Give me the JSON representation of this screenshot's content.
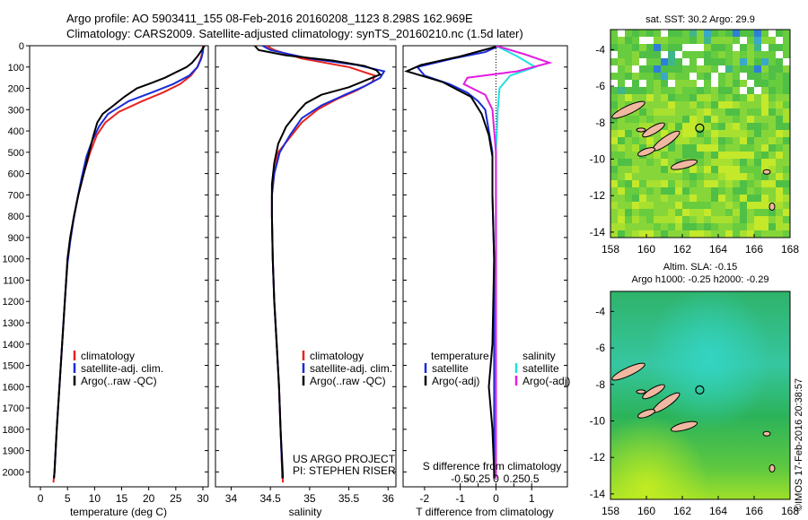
{
  "header": {
    "line1": "Argo profile: AO 5903411_155 08-Feb-2016 20160208_1123 8.298S 162.969E",
    "line2": "Climatology: CARS2009. Satellite-adjusted climatology: synTS_20160210.nc (1.5d later)"
  },
  "colors": {
    "climatology": "#e8231e",
    "satellite": "#1a2bd6",
    "argo": "#000000",
    "sat_salinity": "#1ee0e0",
    "argo_salinity": "#e21ee0",
    "land": "#f0b8a0"
  },
  "chart_data": [
    {
      "type": "line",
      "xlabel": "temperature (deg C)",
      "xlim": [
        -2,
        31
      ],
      "xticks": [
        0,
        5,
        10,
        15,
        20,
        25,
        30
      ],
      "ylim": [
        2070,
        0
      ],
      "yticks": [
        0,
        100,
        200,
        300,
        400,
        500,
        600,
        700,
        800,
        900,
        1000,
        1100,
        1200,
        1300,
        1400,
        1500,
        1600,
        1700,
        1800,
        1900,
        2000
      ],
      "legend": [
        "climatology",
        "satellite-adj. clim.",
        "Argo(..raw -QC)"
      ],
      "series": [
        {
          "name": "climatology",
          "color": "#e8231e",
          "points": [
            [
              30.0,
              0
            ],
            [
              29.9,
              30
            ],
            [
              29.6,
              60
            ],
            [
              29.0,
              100
            ],
            [
              27.8,
              140
            ],
            [
              25.8,
              180
            ],
            [
              22.6,
              220
            ],
            [
              18.8,
              260
            ],
            [
              14.5,
              310
            ],
            [
              12.0,
              360
            ],
            [
              10.4,
              420
            ],
            [
              9.2,
              500
            ],
            [
              8.0,
              600
            ],
            [
              7.0,
              700
            ],
            [
              6.2,
              800
            ],
            [
              5.5,
              900
            ],
            [
              5.0,
              1000
            ],
            [
              4.5,
              1200
            ],
            [
              4.0,
              1400
            ],
            [
              3.5,
              1600
            ],
            [
              3.0,
              1800
            ],
            [
              2.6,
              2000
            ],
            [
              2.4,
              2050
            ]
          ]
        },
        {
          "name": "satellite-adj. clim.",
          "color": "#1a2bd6",
          "points": [
            [
              30.1,
              0
            ],
            [
              30.0,
              30
            ],
            [
              29.7,
              60
            ],
            [
              29.0,
              100
            ],
            [
              27.5,
              140
            ],
            [
              24.5,
              180
            ],
            [
              20.5,
              220
            ],
            [
              16.3,
              260
            ],
            [
              12.5,
              320
            ],
            [
              10.8,
              380
            ],
            [
              9.5,
              450
            ],
            [
              8.5,
              520
            ],
            [
              7.6,
              620
            ],
            [
              6.8,
              720
            ],
            [
              6.1,
              820
            ],
            [
              5.5,
              920
            ],
            [
              5.0,
              1020
            ],
            [
              4.5,
              1200
            ],
            [
              4.0,
              1400
            ],
            [
              3.5,
              1600
            ],
            [
              3.0,
              1800
            ],
            [
              2.6,
              2000
            ],
            [
              2.5,
              2030
            ]
          ]
        },
        {
          "name": "Argo(..raw -QC)",
          "color": "#000000",
          "points": [
            [
              30.3,
              0
            ],
            [
              29.8,
              20
            ],
            [
              29.0,
              50
            ],
            [
              28.0,
              80
            ],
            [
              27.0,
              100
            ],
            [
              25.0,
              125
            ],
            [
              23.0,
              150
            ],
            [
              20.5,
              175
            ],
            [
              17.8,
              200
            ],
            [
              15.5,
              240
            ],
            [
              13.5,
              280
            ],
            [
              11.5,
              320
            ],
            [
              10.5,
              360
            ],
            [
              9.8,
              420
            ],
            [
              9.0,
              500
            ],
            [
              8.0,
              600
            ],
            [
              7.0,
              700
            ],
            [
              6.2,
              800
            ],
            [
              5.5,
              900
            ],
            [
              5.0,
              1000
            ],
            [
              4.5,
              1200
            ],
            [
              4.0,
              1400
            ],
            [
              3.5,
              1600
            ],
            [
              3.0,
              1800
            ],
            [
              2.6,
              2000
            ],
            [
              2.5,
              2030
            ]
          ]
        }
      ]
    },
    {
      "type": "line",
      "xlabel": "salinity",
      "xlim": [
        33.8,
        36.1
      ],
      "xticks": [
        34,
        34.5,
        35,
        35.5,
        36
      ],
      "xticklabels": [
        "34",
        "34.5",
        "35",
        "35.5",
        "36"
      ],
      "ylim": [
        2070,
        0
      ],
      "legend": [
        "climatology",
        "satellite-adj. clim.",
        "Argo(..raw -QC)"
      ],
      "annotation": [
        "US ARGO PROJECT",
        "PI: STEPHEN RISER"
      ],
      "series": [
        {
          "name": "climatology",
          "color": "#e8231e",
          "points": [
            [
              34.45,
              0
            ],
            [
              34.55,
              20
            ],
            [
              34.9,
              60
            ],
            [
              35.5,
              100
            ],
            [
              35.83,
              140
            ],
            [
              35.8,
              170
            ],
            [
              35.6,
              210
            ],
            [
              35.35,
              250
            ],
            [
              35.1,
              300
            ],
            [
              34.9,
              360
            ],
            [
              34.75,
              430
            ],
            [
              34.6,
              500
            ],
            [
              34.55,
              600
            ],
            [
              34.52,
              700
            ],
            [
              34.52,
              800
            ],
            [
              34.53,
              1000
            ],
            [
              34.55,
              1200
            ],
            [
              34.58,
              1400
            ],
            [
              34.61,
              1600
            ],
            [
              34.63,
              1800
            ],
            [
              34.65,
              2000
            ],
            [
              34.66,
              2050
            ]
          ]
        },
        {
          "name": "satellite-adj. clim.",
          "color": "#1a2bd6",
          "points": [
            [
              34.4,
              0
            ],
            [
              34.5,
              20
            ],
            [
              35.0,
              60
            ],
            [
              35.6,
              90
            ],
            [
              35.95,
              120
            ],
            [
              35.9,
              150
            ],
            [
              35.7,
              190
            ],
            [
              35.45,
              230
            ],
            [
              35.15,
              280
            ],
            [
              34.9,
              340
            ],
            [
              34.75,
              420
            ],
            [
              34.62,
              500
            ],
            [
              34.55,
              600
            ],
            [
              34.52,
              700
            ],
            [
              34.52,
              800
            ],
            [
              34.53,
              1000
            ],
            [
              34.55,
              1200
            ],
            [
              34.58,
              1400
            ],
            [
              34.61,
              1600
            ],
            [
              34.63,
              1800
            ],
            [
              34.65,
              2000
            ],
            [
              34.65,
              2030
            ]
          ]
        },
        {
          "name": "Argo(..raw -QC)",
          "color": "#000000",
          "points": [
            [
              34.3,
              0
            ],
            [
              34.35,
              20
            ],
            [
              34.7,
              45
            ],
            [
              35.3,
              70
            ],
            [
              35.7,
              95
            ],
            [
              35.85,
              115
            ],
            [
              35.9,
              135
            ],
            [
              35.7,
              165
            ],
            [
              35.5,
              195
            ],
            [
              35.15,
              230
            ],
            [
              34.95,
              270
            ],
            [
              34.85,
              310
            ],
            [
              34.7,
              380
            ],
            [
              34.6,
              460
            ],
            [
              34.55,
              550
            ],
            [
              34.52,
              650
            ],
            [
              34.52,
              800
            ],
            [
              34.53,
              1000
            ],
            [
              34.55,
              1200
            ],
            [
              34.58,
              1400
            ],
            [
              34.61,
              1600
            ],
            [
              34.63,
              1800
            ],
            [
              34.65,
              1950
            ],
            [
              34.66,
              2030
            ]
          ]
        }
      ]
    },
    {
      "type": "line",
      "xlabel": "T difference from climatology",
      "xlabel2": "S difference from climatology",
      "xlim": [
        -2.6,
        2.0
      ],
      "xticks": [
        -2,
        -1,
        0,
        1
      ],
      "xticklabels": [
        "-2",
        "-1",
        "0",
        "1"
      ],
      "sticks": [
        -1,
        -0.5,
        0,
        0.5,
        1
      ],
      "sticklabels": [
        "-0.5",
        "-0.25",
        "0",
        "0.25",
        "0.5"
      ],
      "ylim": [
        2070,
        0
      ],
      "legend": {
        "temperature_head": "temperature",
        "salinity_head": "salinity",
        "t_sat": "satellite",
        "t_argo": "Argo(-adj)",
        "s_sat": "satellite",
        "s_argo": "Argo(-adj)"
      },
      "series": [
        {
          "name": "temperature satellite",
          "color": "#1a2bd6",
          "points": [
            [
              0.1,
              0
            ],
            [
              -0.3,
              30
            ],
            [
              -1.2,
              60
            ],
            [
              -2.2,
              100
            ],
            [
              -2.0,
              140
            ],
            [
              -1.3,
              180
            ],
            [
              -0.8,
              220
            ],
            [
              -0.5,
              260
            ],
            [
              -0.3,
              300
            ],
            [
              -0.2,
              400
            ],
            [
              -0.1,
              500
            ],
            [
              -0.1,
              700
            ],
            [
              -0.05,
              1000
            ],
            [
              -0.05,
              1500
            ],
            [
              -0.05,
              2000
            ],
            [
              -0.05,
              2030
            ]
          ]
        },
        {
          "name": "temperature Argo(-adj)",
          "color": "#000000",
          "points": [
            [
              0.1,
              0
            ],
            [
              -1.0,
              50
            ],
            [
              -2.1,
              90
            ],
            [
              -2.5,
              120
            ],
            [
              -1.5,
              170
            ],
            [
              -0.7,
              240
            ],
            [
              -0.4,
              320
            ],
            [
              -0.2,
              420
            ],
            [
              -0.1,
              520
            ],
            [
              -0.1,
              700
            ],
            [
              -0.05,
              1000
            ],
            [
              -0.1,
              1400
            ],
            [
              -0.2,
              1600
            ],
            [
              -0.1,
              1800
            ],
            [
              -0.05,
              2000
            ],
            [
              -0.05,
              2030
            ]
          ]
        },
        {
          "name": "salinity satellite",
          "color": "#1ee0e0",
          "points": [
            [
              0.0,
              0
            ],
            [
              0.6,
              50
            ],
            [
              1.1,
              100
            ],
            [
              0.4,
              140
            ],
            [
              0.1,
              200
            ],
            [
              0.05,
              300
            ],
            [
              0.0,
              500
            ],
            [
              0.0,
              1000
            ],
            [
              0.0,
              2000
            ],
            [
              0.0,
              2030
            ]
          ]
        },
        {
          "name": "salinity Argo(-adj)",
          "color": "#e21ee0",
          "points": [
            [
              0.0,
              0
            ],
            [
              0.8,
              40
            ],
            [
              1.5,
              80
            ],
            [
              0.6,
              120
            ],
            [
              -0.8,
              150
            ],
            [
              -0.9,
              180
            ],
            [
              -0.3,
              230
            ],
            [
              -0.1,
              300
            ],
            [
              0.0,
              500
            ],
            [
              0.0,
              1000
            ],
            [
              0.0,
              2000
            ],
            [
              0.0,
              2030
            ]
          ]
        }
      ]
    },
    {
      "type": "heatmap",
      "title": "sat. SST: 30.2  Argo: 29.9",
      "xlim": [
        158,
        168
      ],
      "ylim": [
        -14.3,
        -2.9
      ],
      "xticks": [
        158,
        160,
        162,
        164,
        166,
        168
      ],
      "yticks": [
        -4,
        -6,
        -8,
        -10,
        -12,
        -14
      ],
      "marker": {
        "lon": 162.97,
        "lat": -8.3
      }
    },
    {
      "type": "heatmap",
      "title_line1": "Altim. SLA: -0.15",
      "title_line2": "Argo h1000: -0.25 h2000: -0.29",
      "xlim": [
        158,
        168
      ],
      "ylim": [
        -14.3,
        -2.9
      ],
      "xticks": [
        158,
        160,
        162,
        164,
        166,
        168
      ],
      "yticks": [
        -4,
        -6,
        -8,
        -10,
        -12,
        -14
      ],
      "marker": {
        "lon": 162.97,
        "lat": -8.3
      }
    }
  ],
  "footer_vertical": "©IMOS 17-Feb-2016 20:38:57"
}
